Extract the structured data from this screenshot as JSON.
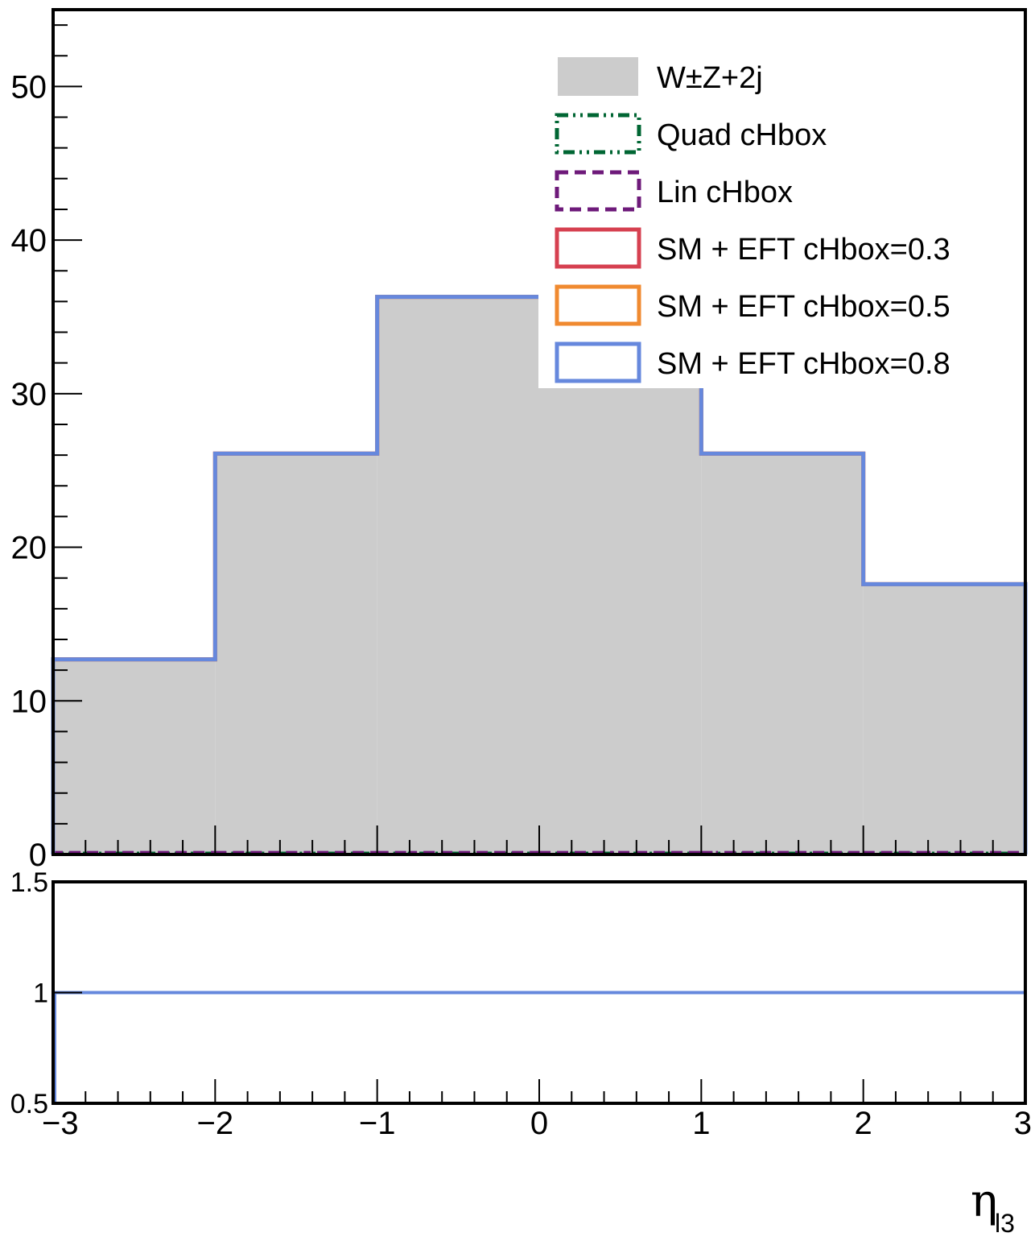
{
  "chart_data": [
    {
      "type": "histogram",
      "panel": "main",
      "bin_edges": [
        -3,
        -2,
        -1,
        0,
        1,
        2,
        3
      ],
      "xlim": [
        -3,
        3
      ],
      "ylim": [
        0,
        55
      ],
      "yticks": [
        0,
        10,
        20,
        30,
        40,
        50
      ],
      "ytick_labels": [
        "0",
        "10",
        "20",
        "30",
        "40",
        "50"
      ],
      "xlabel": "η",
      "xlabel_subscript": "l3",
      "series": [
        {
          "name": "W±Z+2j",
          "style": "filled",
          "color": "#cccccc",
          "values": [
            12.7,
            26.1,
            36.3,
            36.3,
            26.1,
            17.6
          ]
        },
        {
          "name": "Quad cHbox",
          "style": "dash-dot",
          "color": "#006633",
          "values": [
            0.05,
            0.05,
            0.05,
            0.05,
            0.05,
            0.05
          ]
        },
        {
          "name": "Lin cHbox",
          "style": "dashed",
          "color": "#6e1a7a",
          "values": [
            0.1,
            0.1,
            0.1,
            0.1,
            0.1,
            0.1
          ]
        },
        {
          "name": "SM + EFT cHbox=0.3",
          "style": "solid",
          "color": "#d64050",
          "values": [
            12.7,
            26.1,
            36.3,
            36.3,
            26.1,
            17.6
          ]
        },
        {
          "name": "SM + EFT cHbox=0.5",
          "style": "solid",
          "color": "#f08a30",
          "values": [
            12.7,
            26.1,
            36.3,
            36.3,
            26.1,
            17.6
          ]
        },
        {
          "name": "SM + EFT cHbox=0.8",
          "style": "solid",
          "color": "#6688dd",
          "values": [
            12.7,
            26.1,
            36.3,
            36.3,
            26.1,
            17.6
          ]
        }
      ],
      "legend_placement": "top-right"
    },
    {
      "type": "line",
      "panel": "ratio",
      "xlim": [
        -3,
        3
      ],
      "ylim": [
        0.5,
        1.5
      ],
      "yticks": [
        0.5,
        1,
        1.5
      ],
      "ytick_labels": [
        "0.5",
        "1",
        "1.5"
      ],
      "xticks": [
        -3,
        -2,
        -1,
        0,
        1,
        2,
        3
      ],
      "xtick_labels": [
        "−3",
        "−2",
        "−1",
        "0",
        "1",
        "2",
        "3"
      ],
      "series": [
        {
          "style": "solid",
          "color": "#aaaaaa",
          "x": [
            -3,
            3
          ],
          "y": [
            1,
            1
          ]
        },
        {
          "style": "solid",
          "color": "#6688dd",
          "x": [
            -3,
            3
          ],
          "y": [
            1,
            1
          ]
        }
      ]
    }
  ]
}
